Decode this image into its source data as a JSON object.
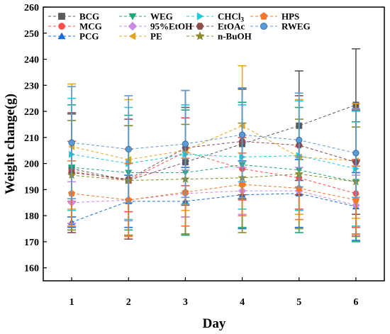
{
  "chart_data": {
    "type": "line",
    "xlabel": "Day",
    "ylabel": "Weight change(g)",
    "x": [
      1,
      2,
      3,
      4,
      5,
      6
    ],
    "xlim": [
      0.5,
      6.5
    ],
    "ylim": [
      155,
      260
    ],
    "yticks": [
      160,
      170,
      180,
      190,
      200,
      210,
      220,
      230,
      240,
      250,
      260
    ],
    "grid": false,
    "legend_position": "top",
    "series": [
      {
        "name": "BCG",
        "color": "#595959",
        "marker": "square",
        "values": [
          198,
          193.5,
          200.5,
          207.5,
          214.5,
          222.5
        ],
        "errors": [
          21,
          21,
          21,
          21,
          21,
          21.5
        ]
      },
      {
        "name": "MCG",
        "color": "#ff4d4d",
        "marker": "circle",
        "values": [
          197,
          193.5,
          204.5,
          198,
          194.5,
          188.5
        ],
        "errors": [
          11.5,
          12,
          13,
          12,
          12,
          13
        ]
      },
      {
        "name": "PCG",
        "color": "#1a6fd6",
        "marker": "triangle-up",
        "values": [
          177.5,
          185.5,
          185.5,
          188,
          188.5,
          183.5
        ],
        "errors": [
          2,
          10,
          13,
          13,
          13,
          13
        ]
      },
      {
        "name": "WEG",
        "color": "#1aaa7a",
        "marker": "triangle-down",
        "values": [
          198.5,
          196.5,
          196.5,
          199.5,
          197.5,
          193
        ],
        "errors": [
          24,
          22,
          24,
          24,
          24,
          23
        ]
      },
      {
        "name": "95%EtOH",
        "color": "#c88ce6",
        "marker": "diamond",
        "values": [
          185,
          186,
          188.5,
          189.5,
          189.5,
          184
        ],
        "errors": [
          8,
          8,
          9,
          9,
          9,
          11.5
        ]
      },
      {
        "name": "PE",
        "color": "#e5a520",
        "marker": "triangle-left",
        "values": [
          206.5,
          201.5,
          205,
          214.5,
          202.5,
          201
        ],
        "errors": [
          24,
          23,
          23,
          23,
          22,
          22
        ]
      },
      {
        "name": "CHCl3",
        "color": "#1ecbdd",
        "marker": "triangle-right",
        "values": [
          203.5,
          200,
          203.5,
          202.5,
          203,
          198
        ],
        "errors": [
          21.5,
          21.5,
          19,
          20,
          21,
          22
        ]
      },
      {
        "name": "EtOAc",
        "color": "#8b4d4d",
        "marker": "hexagon",
        "values": [
          196.5,
          194,
          206,
          208.5,
          207,
          200.5
        ],
        "errors": [
          23,
          23,
          22,
          20.5,
          19,
          20
        ]
      },
      {
        "name": "n-BuOH",
        "color": "#8a8a2a",
        "marker": "star",
        "values": [
          195.5,
          193.5,
          194,
          194.5,
          196,
          193
        ],
        "errors": [
          21,
          21,
          21,
          21,
          21,
          21
        ]
      },
      {
        "name": "HPS",
        "color": "#f0782a",
        "marker": "pentagon",
        "values": [
          188.5,
          186,
          189,
          192,
          190.5,
          186
        ],
        "errors": [
          12.5,
          14,
          13,
          12,
          12,
          13
        ]
      },
      {
        "name": "RWEG",
        "color": "#5b9bd5",
        "marker": "sphere",
        "values": [
          208,
          205.5,
          207.5,
          211,
          209,
          204
        ],
        "errors": [
          21.5,
          20.5,
          20.5,
          18,
          18,
          17
        ]
      }
    ]
  }
}
